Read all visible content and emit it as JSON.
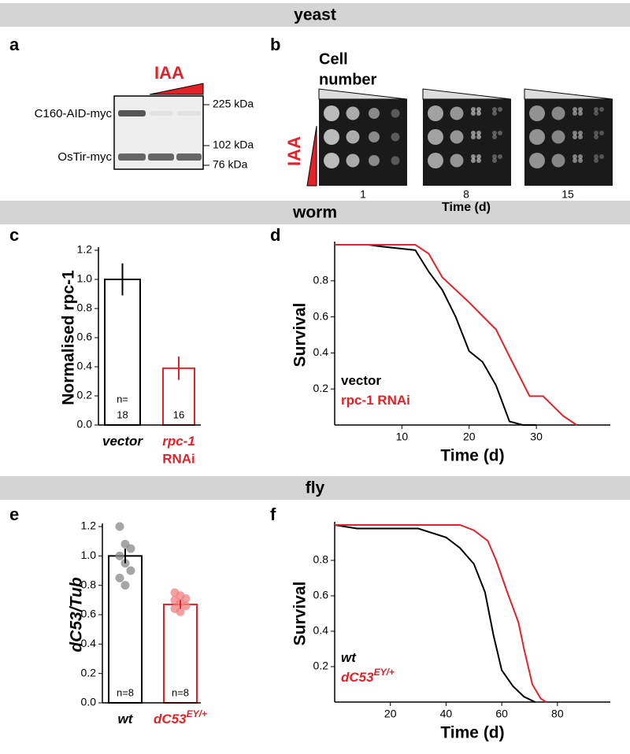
{
  "sections": [
    "yeast",
    "worm",
    "fly"
  ],
  "panels": [
    "a",
    "b",
    "c",
    "d",
    "e",
    "f"
  ],
  "blot": {
    "treatment": "IAA",
    "bands": [
      "C160-AID-myc",
      "OsTir-myc"
    ],
    "markers": [
      "225 kDa",
      "102 kDa",
      "76 kDa"
    ]
  },
  "spot_assay": {
    "header_lines": [
      "Cell",
      "number"
    ],
    "treatment": "IAA",
    "timepoints": [
      "1",
      "8",
      "15"
    ],
    "xlabel": "Time (d)"
  },
  "chart_data": [
    {
      "type": "bar",
      "ylabel": "Normalised rpc-1",
      "categories": [
        "vector",
        "rpc-1"
      ],
      "category_line2": [
        null,
        "RNAi"
      ],
      "category_colors": [
        "#000000",
        "#e32227"
      ],
      "values": [
        1.0,
        0.39
      ],
      "errors": [
        0.11,
        0.08
      ],
      "n_labels": [
        [
          "n=",
          "18"
        ],
        [
          "16"
        ]
      ],
      "ylim": [
        0,
        1.2
      ],
      "yticks": [
        {
          "value": 0,
          "label": "0.0"
        },
        0.2,
        0.4,
        0.6,
        0.8,
        {
          "value": 1,
          "label": "1.0"
        },
        1.2
      ]
    },
    {
      "type": "line",
      "ylabel": "Survival",
      "xlabel": "Time (d)",
      "xlim": [
        0,
        41
      ],
      "ylim": [
        0,
        1
      ],
      "xticks": [
        10,
        20,
        30
      ],
      "yticks": [
        0.2,
        0.4,
        0.6,
        0.8
      ],
      "legend": "lower-left",
      "series": [
        {
          "name": "vector",
          "color": "#000000",
          "x": [
            0,
            5,
            7,
            12,
            14,
            16,
            18,
            20,
            22,
            24,
            26,
            28,
            30
          ],
          "values": [
            1,
            1,
            0.99,
            0.97,
            0.85,
            0.75,
            0.6,
            0.41,
            0.35,
            0.22,
            0.02,
            0,
            0
          ]
        },
        {
          "name": "rpc-1 RNAi",
          "color": "#e32227",
          "x": [
            0,
            12,
            14,
            16,
            20,
            24,
            26,
            29,
            31,
            34,
            36
          ],
          "values": [
            1,
            1,
            0.95,
            0.82,
            0.68,
            0.53,
            0.38,
            0.16,
            0.16,
            0.05,
            0
          ]
        }
      ]
    },
    {
      "type": "bar",
      "ylabel": "dC53/Tub",
      "categories": [
        "wt",
        "dC53"
      ],
      "category_superscripts": [
        null,
        "EY/+"
      ],
      "category_colors": [
        "#000000",
        "#e32227"
      ],
      "values": [
        1.0,
        0.67
      ],
      "errors": [
        0.05,
        0.03
      ],
      "points": [
        [
          1.2,
          1.08,
          1.05,
          1.0,
          0.95,
          0.9,
          0.85,
          0.8
        ],
        [
          0.75,
          0.73,
          0.71,
          0.7,
          0.68,
          0.66,
          0.64,
          0.62
        ]
      ],
      "n_labels": [
        [
          "n=8"
        ],
        [
          "n=8"
        ]
      ],
      "ylim": [
        0,
        1.2
      ],
      "yticks": [
        {
          "value": 0,
          "label": "0.0"
        },
        0.2,
        0.4,
        0.6,
        0.8,
        {
          "value": 1,
          "label": "1.0"
        },
        1.2
      ]
    },
    {
      "type": "line",
      "ylabel": "Survival",
      "xlabel": "Time (d)",
      "xlim": [
        0,
        99
      ],
      "ylim": [
        0,
        1
      ],
      "xticks": [
        20,
        40,
        60,
        80
      ],
      "yticks": [
        0.2,
        0.4,
        0.6,
        0.8
      ],
      "legend": "lower-left",
      "series": [
        {
          "name": "wt",
          "color": "#000000",
          "x": [
            0,
            8,
            30,
            40,
            45,
            50,
            54,
            57,
            60,
            64,
            68,
            72
          ],
          "values": [
            1,
            0.98,
            0.98,
            0.93,
            0.87,
            0.78,
            0.62,
            0.38,
            0.18,
            0.09,
            0.03,
            0
          ]
        },
        {
          "name": "dC53",
          "name_sup": "EY/+",
          "color": "#e32227",
          "x": [
            0,
            45,
            50,
            55,
            58,
            62,
            66,
            68,
            71,
            74,
            76
          ],
          "values": [
            1,
            1,
            0.97,
            0.91,
            0.8,
            0.62,
            0.45,
            0.3,
            0.1,
            0.02,
            0
          ]
        }
      ]
    }
  ]
}
